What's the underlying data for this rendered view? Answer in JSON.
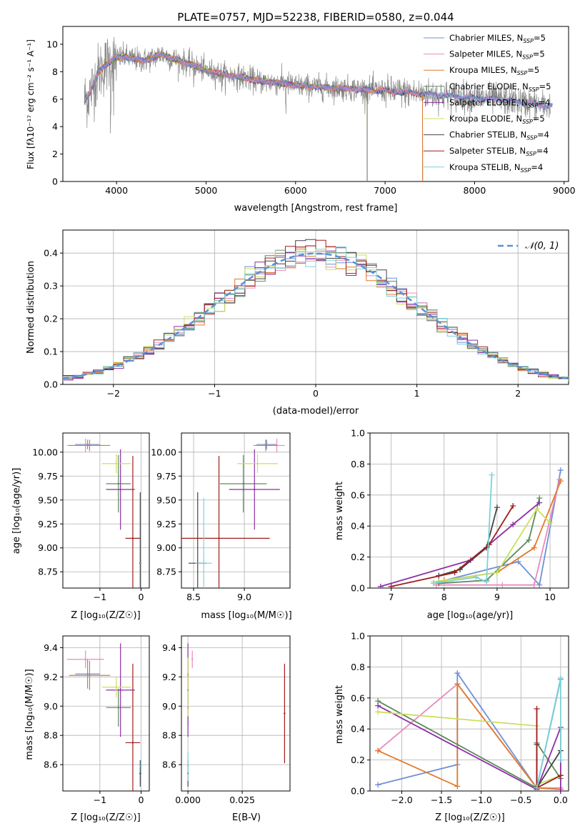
{
  "figure": {
    "title": "PLATE=0757, MJD=52238, FIBERID=0580, z=0.044"
  },
  "colors": {
    "palette": [
      "#6f8fd6",
      "#e98abf",
      "#e07a2a",
      "#5c8a5c",
      "#8e2fa8",
      "#c9e05a",
      "#444444",
      "#a01d1d",
      "#7ad3d6"
    ],
    "spectrum_data": "#888888",
    "normal_curve": "#5b8fd8",
    "grid": "#b0b0b0"
  },
  "chart_data": [
    {
      "id": "spectrum",
      "type": "line",
      "xlabel": "wavelength [Angstrom, rest frame]",
      "ylabel": "Flux [fλ10⁻¹⁷ erg cm⁻² s⁻¹ A⁻¹]",
      "xlim": [
        3400,
        9050
      ],
      "ylim": [
        0,
        11.3
      ],
      "xticks": [
        4000,
        5000,
        6000,
        7000,
        8000,
        9000
      ],
      "yticks": [
        0,
        2,
        4,
        6,
        8,
        10
      ],
      "grid": false,
      "legend_placement": "top-right",
      "legend": [
        {
          "model": "Chabrier MILES, N",
          "nssp": "=5"
        },
        {
          "model": "Salpeter MILES, N",
          "nssp": "=5"
        },
        {
          "model": "Kroupa MILES, N",
          "nssp": "=5"
        },
        {
          "model": "Chabrier ELODIE, N",
          "nssp": "=5"
        },
        {
          "model": "Salpeter ELODIE, N",
          "nssp": "=4"
        },
        {
          "model": "Kroupa ELODIE, N",
          "nssp": "=5"
        },
        {
          "model": "Chabrier STELIB, N",
          "nssp": "=4"
        },
        {
          "model": "Salpeter STELIB, N",
          "nssp": "=4"
        },
        {
          "model": "Kroupa STELIB, N",
          "nssp": "=4"
        }
      ],
      "nssp_subscript": "SSP",
      "continuum_x": [
        3650,
        3700,
        3800,
        3900,
        4000,
        4100,
        4200,
        4300,
        4400,
        4500,
        4600,
        4700,
        4800,
        5000,
        5200,
        5400,
        5600,
        5800,
        6000,
        6200,
        6500,
        6800,
        7000,
        7200,
        7400,
        7600,
        7800,
        8000,
        8200,
        8400,
        8600,
        8800
      ],
      "continuum_y": [
        6.0,
        6.4,
        8.0,
        8.6,
        9.0,
        9.1,
        8.9,
        8.8,
        9.0,
        9.3,
        9.0,
        8.8,
        8.6,
        8.1,
        7.8,
        7.6,
        7.3,
        7.2,
        7.0,
        6.9,
        6.8,
        6.7,
        6.6,
        6.5,
        6.4,
        6.3,
        6.2,
        6.1,
        6.0,
        5.9,
        5.7,
        5.5
      ]
    },
    {
      "id": "residuals",
      "type": "line",
      "xlabel": "(data-model)/error",
      "ylabel": "Normed distribution",
      "xlim": [
        -2.5,
        2.5
      ],
      "ylim": [
        0,
        0.47
      ],
      "xticks": [
        -2,
        -1,
        0,
        1,
        2
      ],
      "yticks": [
        0.0,
        0.1,
        0.2,
        0.3,
        0.4
      ],
      "grid": true,
      "legend_placement": "top-right",
      "normal_label": "𝒩(0, 1)",
      "bin_width": 0.1
    },
    {
      "id": "age-vs-z",
      "type": "scatter",
      "xlabel": "Z [log₁₀(Z/Z☉)]",
      "ylabel": "age  [log₁₀(age/yr)]",
      "xlim": [
        -1.9,
        0.2
      ],
      "ylim": [
        8.58,
        10.2
      ],
      "xticks": [
        -1,
        0
      ],
      "yticks": [
        8.75,
        9.0,
        9.25,
        9.5,
        9.75,
        10.0
      ],
      "grid": true,
      "points": [
        {
          "x": -1.3,
          "y": 10.08,
          "xerr": 0.3,
          "yerr": 0.05
        },
        {
          "x": -1.35,
          "y": 10.07,
          "xerr": 0.45,
          "yerr": 0.07
        },
        {
          "x": -1.25,
          "y": 10.07,
          "xerr": 0.5,
          "yerr": 0.06
        },
        {
          "x": -0.55,
          "y": 9.67,
          "xerr": 0.3,
          "yerr": 0.3
        },
        {
          "x": -0.5,
          "y": 9.61,
          "xerr": 0.35,
          "yerr": 0.42
        },
        {
          "x": -0.6,
          "y": 9.88,
          "xerr": 0.35,
          "yerr": 0.1
        },
        {
          "x": -0.02,
          "y": 8.84,
          "xerr": 0.02,
          "yerr": 0.74
        },
        {
          "x": -0.2,
          "y": 9.1,
          "xerr": 0.18,
          "yerr": 0.86
        },
        {
          "x": 0.0,
          "y": 8.84,
          "xerr": 0.02,
          "yerr": 0.0
        }
      ]
    },
    {
      "id": "age-vs-mass",
      "type": "scatter",
      "xlabel": "mass [log₁₀(M/M☉)]",
      "ylabel": "",
      "xlim": [
        8.38,
        9.45
      ],
      "ylim": [
        8.58,
        10.2
      ],
      "xticks": [
        8.5,
        9.0
      ],
      "yticks": [
        8.75,
        9.0,
        9.25,
        9.5,
        9.75,
        10.0
      ],
      "grid": true,
      "points": [
        {
          "x": 9.22,
          "y": 10.08,
          "xerr": 0.1,
          "yerr": 0.05
        },
        {
          "x": 9.32,
          "y": 10.07,
          "xerr": 0.08,
          "yerr": 0.07
        },
        {
          "x": 9.21,
          "y": 10.07,
          "xerr": 0.12,
          "yerr": 0.06
        },
        {
          "x": 8.99,
          "y": 9.67,
          "xerr": 0.23,
          "yerr": 0.3
        },
        {
          "x": 9.1,
          "y": 9.61,
          "xerr": 0.25,
          "yerr": 0.42
        },
        {
          "x": 9.13,
          "y": 9.88,
          "xerr": 0.2,
          "yerr": 0.1
        },
        {
          "x": 8.54,
          "y": 8.84,
          "xerr": 0.09,
          "yerr": 0.74
        },
        {
          "x": 8.75,
          "y": 9.1,
          "xerr": 0.5,
          "yerr": 0.86
        },
        {
          "x": 8.6,
          "y": 8.84,
          "xerr": 0.08,
          "yerr": 0.68
        }
      ]
    },
    {
      "id": "weight-vs-age",
      "type": "line",
      "xlabel": "age  [log₁₀(age/yr)]",
      "ylabel": "mass weight",
      "xlim": [
        6.6,
        10.35
      ],
      "ylim": [
        0,
        1.0
      ],
      "xticks": [
        7,
        8,
        9,
        10
      ],
      "yticks": [
        0.0,
        0.2,
        0.4,
        0.6,
        0.8,
        1.0
      ],
      "grid": true,
      "series": [
        {
          "x": [
            7.9,
            9.4,
            9.8,
            10.2
          ],
          "y": [
            0.04,
            0.17,
            0.02,
            0.76
          ]
        },
        {
          "x": [
            7.85,
            9.1,
            9.7,
            10.18
          ],
          "y": [
            0.02,
            0.02,
            0.02,
            0.7
          ]
        },
        {
          "x": [
            8.0,
            9.0,
            9.7,
            10.2
          ],
          "y": [
            0.05,
            0.1,
            0.26,
            0.69
          ]
        },
        {
          "x": [
            7.9,
            8.8,
            9.6,
            9.8
          ],
          "y": [
            0.03,
            0.05,
            0.31,
            0.58
          ]
        },
        {
          "x": [
            6.8,
            8.5,
            9.3,
            9.8
          ],
          "y": [
            0.01,
            0.18,
            0.41,
            0.55
          ]
        },
        {
          "x": [
            7.8,
            9.0,
            9.75,
            10.0
          ],
          "y": [
            0.04,
            0.1,
            0.51,
            0.42
          ]
        },
        {
          "x": [
            7.9,
            8.3,
            8.8,
            9.0
          ],
          "y": [
            0.08,
            0.12,
            0.26,
            0.52
          ]
        },
        {
          "x": [
            7.0,
            8.2,
            8.85,
            9.3
          ],
          "y": [
            0.01,
            0.1,
            0.28,
            0.53
          ]
        },
        {
          "x": [
            7.8,
            8.6,
            8.8,
            8.9
          ],
          "y": [
            0.03,
            0.07,
            0.04,
            0.73
          ]
        }
      ]
    },
    {
      "id": "mass-vs-z",
      "type": "scatter",
      "xlabel": "Z [log₁₀(Z/Z☉)]",
      "ylabel": "mass [log₁₀(M/M☉)]",
      "xlim": [
        -1.9,
        0.2
      ],
      "ylim": [
        8.42,
        9.48
      ],
      "xticks": [
        -1,
        0
      ],
      "yticks": [
        8.6,
        8.8,
        9.0,
        9.2,
        9.4
      ],
      "grid": true,
      "points": [
        {
          "x": -1.3,
          "y": 9.22,
          "xerr": 0.3,
          "yerr": 0.1
        },
        {
          "x": -1.35,
          "y": 9.32,
          "xerr": 0.45,
          "yerr": 0.06
        },
        {
          "x": -1.25,
          "y": 9.21,
          "xerr": 0.5,
          "yerr": 0.1
        },
        {
          "x": -0.55,
          "y": 8.99,
          "xerr": 0.3,
          "yerr": 0.13
        },
        {
          "x": -0.5,
          "y": 9.11,
          "xerr": 0.35,
          "yerr": 0.32
        },
        {
          "x": -0.6,
          "y": 9.13,
          "xerr": 0.35,
          "yerr": 0.07
        },
        {
          "x": -0.02,
          "y": 8.54,
          "xerr": 0.02,
          "yerr": 0.09
        },
        {
          "x": -0.2,
          "y": 8.75,
          "xerr": 0.18,
          "yerr": 0.54
        },
        {
          "x": 0.0,
          "y": 8.59,
          "xerr": 0.02,
          "yerr": 0.05
        }
      ]
    },
    {
      "id": "mass-vs-ebv",
      "type": "scatter",
      "xlabel": "E(B-V)",
      "ylabel": "",
      "xlim": [
        -0.003,
        0.047
      ],
      "ylim": [
        8.42,
        9.48
      ],
      "xticks": [
        0.0,
        0.025
      ],
      "yticks": [
        8.6,
        8.8,
        9.0,
        9.2,
        9.4
      ],
      "grid": true,
      "points": [
        {
          "x": 0.0,
          "y": 9.22,
          "xerr": 0.0,
          "yerr": 0.1
        },
        {
          "x": 0.002,
          "y": 9.32,
          "xerr": 0.0,
          "yerr": 0.06
        },
        {
          "x": 0.0,
          "y": 9.21,
          "xerr": 0.0,
          "yerr": 0.1
        },
        {
          "x": 0.0,
          "y": 8.99,
          "xerr": 0.0,
          "yerr": 0.13
        },
        {
          "x": 0.0,
          "y": 9.11,
          "xerr": 0.0,
          "yerr": 0.32
        },
        {
          "x": 0.0,
          "y": 9.13,
          "xerr": 0.0,
          "yerr": 0.2
        },
        {
          "x": 0.0,
          "y": 8.54,
          "xerr": 0.0,
          "yerr": 0.09
        },
        {
          "x": 0.0445,
          "y": 8.95,
          "xerr": 0.0,
          "yerr": 0.34
        },
        {
          "x": 0.0,
          "y": 8.59,
          "xerr": 0.0,
          "yerr": 0.1
        }
      ]
    },
    {
      "id": "weight-vs-z",
      "type": "line",
      "xlabel": "Z [log₁₀(Z/Z☉)]",
      "ylabel": "mass weight",
      "xlim": [
        -2.4,
        0.1
      ],
      "ylim": [
        0,
        1.0
      ],
      "xticks": [
        -2.0,
        -1.5,
        -1.0,
        -0.5,
        0.0
      ],
      "yticks": [
        0.0,
        0.2,
        0.4,
        0.6,
        0.8,
        1.0
      ],
      "grid": true,
      "series": [
        {
          "x": [
            -2.3,
            -1.3,
            -1.3,
            -0.3,
            0.0
          ],
          "y": [
            0.04,
            0.17,
            0.76,
            0.02,
            0.72
          ]
        },
        {
          "x": [
            -2.3,
            -1.3,
            -0.3,
            0.0
          ],
          "y": [
            0.26,
            0.69,
            0.02,
            0.02
          ]
        },
        {
          "x": [
            -2.3,
            -1.3,
            -1.3,
            -0.3,
            0.0
          ],
          "y": [
            0.26,
            0.03,
            0.69,
            0.02,
            0.01
          ]
        },
        {
          "x": [
            -2.3,
            -0.3,
            -0.3,
            0.0
          ],
          "y": [
            0.58,
            0.02,
            0.31,
            0.08
          ]
        },
        {
          "x": [
            -2.3,
            -0.3,
            0.0,
            0.0
          ],
          "y": [
            0.55,
            0.01,
            0.41,
            0.0
          ]
        },
        {
          "x": [
            -2.3,
            -0.3,
            -0.3,
            0.0
          ],
          "y": [
            0.51,
            0.42,
            0.04,
            0.1
          ]
        },
        {
          "x": [
            -0.3,
            -0.3,
            0.0
          ],
          "y": [
            0.3,
            0.02,
            0.26
          ]
        },
        {
          "x": [
            -0.3,
            -0.3,
            0.0
          ],
          "y": [
            0.53,
            0.02,
            0.1
          ]
        },
        {
          "x": [
            -0.3,
            0.0,
            0.0
          ],
          "y": [
            0.02,
            0.73,
            0.2
          ]
        }
      ]
    }
  ]
}
